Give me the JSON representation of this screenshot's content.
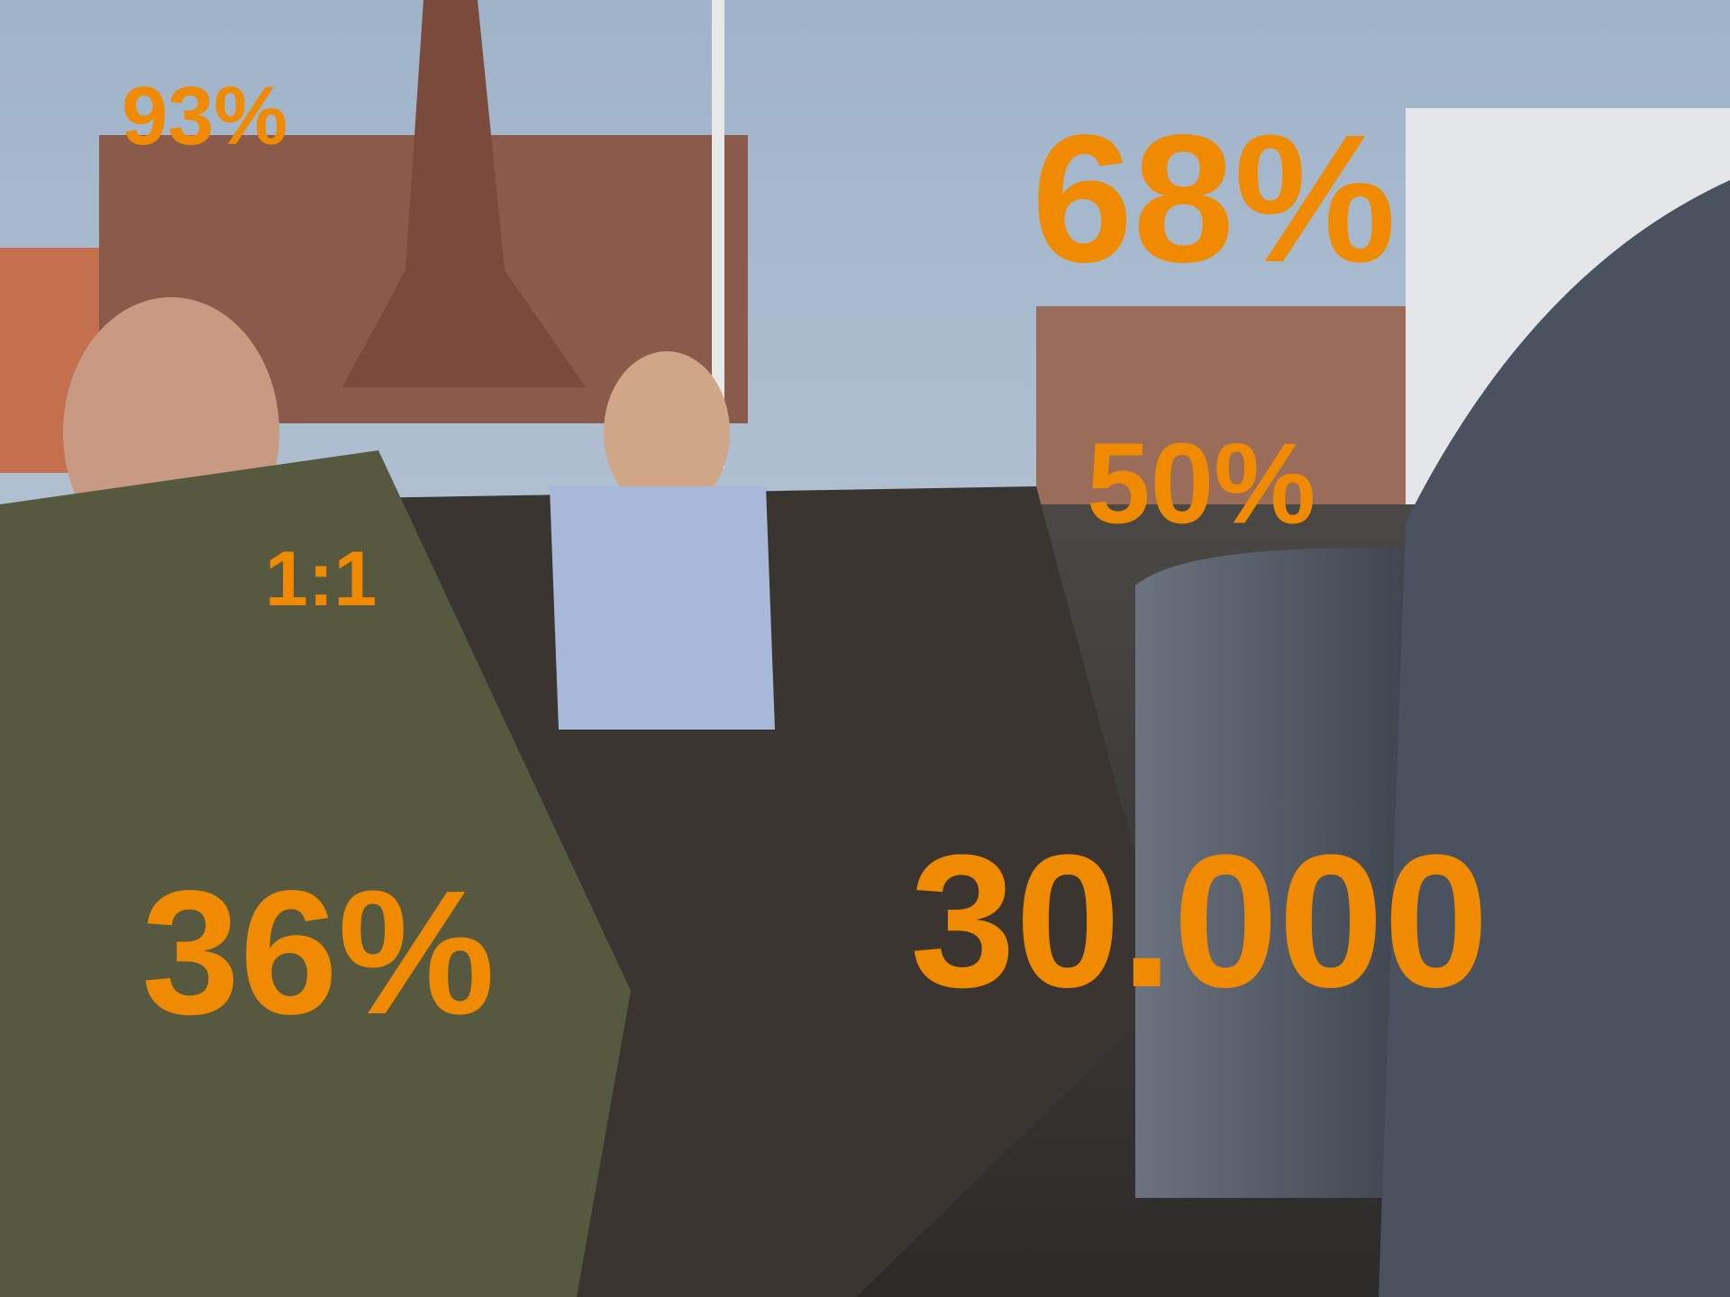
{
  "stats": {
    "top_left": "93%",
    "top_right": "68%",
    "middle_right": "50%",
    "middle_left": "1:1",
    "bottom_left": "36%",
    "bottom_right": "30.000"
  }
}
